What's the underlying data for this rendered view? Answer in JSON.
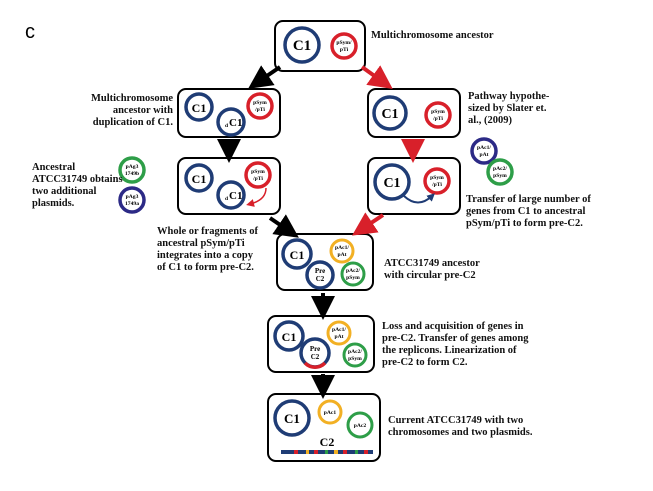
{
  "panel_label": "c",
  "colors": {
    "chromosome": "#1f3c75",
    "psym": "#d8202a",
    "pac1": "#f2b024",
    "pac2": "#2e9e48",
    "pag": "#2c2a86",
    "arrow_black": "#000000",
    "arrow_red": "#d8202a"
  },
  "boxes": {
    "ancestor": {
      "c1": "C1",
      "psym1": "pSym/",
      "psym2": "pTi"
    },
    "dup": {
      "c1": "C1",
      "dc1_sub": "d",
      "dc1": "C1",
      "psym1": "pSym",
      "psym2": "/pTi"
    },
    "slater": {
      "c1": "C1",
      "psym1": "pSym",
      "psym2": "/pTi"
    },
    "pag": {
      "c1": "C1",
      "dc1_sub": "d",
      "dc1": "C1",
      "psym1": "pSym",
      "psym2": "/pTi"
    },
    "transfer": {
      "c1": "C1",
      "psym1": "pSym",
      "psym2": "/pTi"
    },
    "precircular": {
      "c1": "C1",
      "pre1": "Pre",
      "pre2": "C2",
      "pac1_1": "pAc1/",
      "pac1_2": "pAt",
      "pac2_1": "pAc2/",
      "pac2_2": "pSym"
    },
    "prelinear": {
      "c1": "C1",
      "pre1": "Pre",
      "pre2": "C2",
      "pac1_1": "pAc1/",
      "pac1_2": "pAt",
      "pac2_1": "pAc2/",
      "pac2_2": "pSym"
    },
    "current": {
      "c1": "C1",
      "pac1": "pAc1",
      "pac2": "pAc2",
      "c2": "C2"
    }
  },
  "outside_plasmids": {
    "pag_top": [
      "pAg3",
      "1749b"
    ],
    "pag_bottom": [
      "pAg3",
      "1749a"
    ],
    "pac1_side": [
      "pAc1/",
      "pAt"
    ],
    "pac2_side": [
      "pAc2/",
      "pSym"
    ]
  },
  "captions": {
    "ancestor": [
      "Multichromosome ancestor"
    ],
    "dup": [
      "Multichromosome",
      "ancestor with",
      "duplication of C1."
    ],
    "slater": [
      "Pathway hypothe-",
      "sized by Slater et.",
      "al., (2009)"
    ],
    "atcc_left": [
      "Ancestral",
      "ATCC31749 obtains",
      "two additional",
      "plasmids."
    ],
    "integrate": [
      "Whole or fragments of",
      "ancestral pSym/pTi",
      "integrates into a copy",
      "of C1 to form pre-C2."
    ],
    "transfer": [
      "Transfer of large number of",
      "genes from C1 to ancestral",
      "pSym/pTi to form pre-C2."
    ],
    "circular": [
      "ATCC31749 ancestor",
      "with circular pre-C2"
    ],
    "loss": [
      "Loss and acquisition of genes in",
      "pre-C2. Transfer of genes among",
      "the replicons. Linearization of",
      "pre-C2 to form C2."
    ],
    "current": [
      "Current ATCC31749 with two",
      "chromosomes and two plasmids."
    ]
  }
}
